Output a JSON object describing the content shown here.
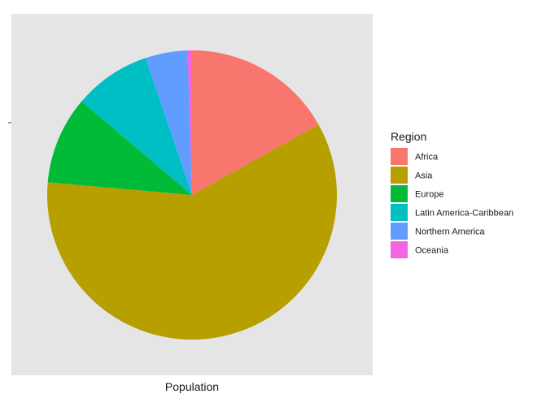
{
  "chart_data": {
    "type": "pie",
    "xlabel": "Population",
    "ylabel": "",
    "legend": {
      "title": "Region",
      "position": "right"
    },
    "grid": false,
    "panel_background": "#e5e5e5",
    "slices": [
      {
        "label": "Africa",
        "value": 16.9,
        "color": "#f8766d"
      },
      {
        "label": "Asia",
        "value": 59.5,
        "color": "#b79f00"
      },
      {
        "label": "Europe",
        "value": 9.8,
        "color": "#00ba38"
      },
      {
        "label": "Latin America-Caribbean",
        "value": 8.6,
        "color": "#00bfc4"
      },
      {
        "label": "Northern America",
        "value": 4.7,
        "color": "#619cff"
      },
      {
        "label": "Oceania",
        "value": 0.5,
        "color": "#f564e3"
      }
    ],
    "start_angle_deg": 0,
    "direction": "clockwise"
  }
}
